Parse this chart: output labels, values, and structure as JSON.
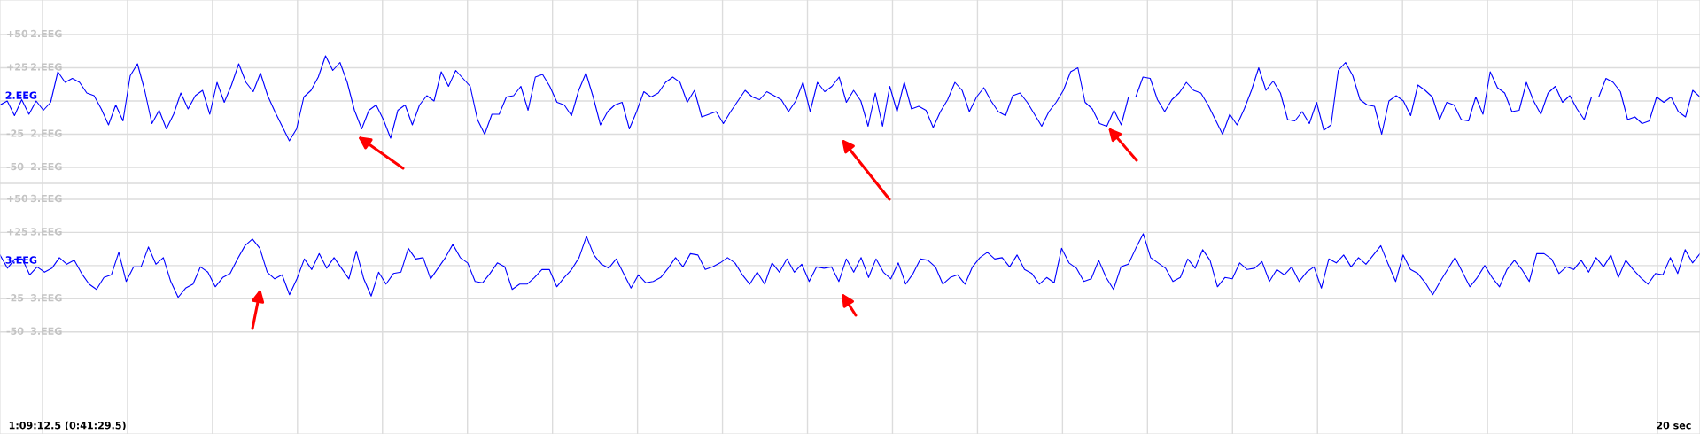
{
  "chart_data": [
    {
      "type": "line",
      "ylim": [
        -62,
        76
      ],
      "grid": true,
      "tick_labels": "y",
      "yticks": [
        {
          "value": 50,
          "label": "+50"
        },
        {
          "value": 25,
          "label": "+25"
        },
        {
          "value": 0,
          "label": null
        },
        {
          "value": -25,
          "label": "-25"
        },
        {
          "value": -50,
          "label": "-50"
        }
      ],
      "categories": [
        null,
        null,
        null,
        null,
        null,
        null,
        null,
        null,
        null,
        null,
        null,
        null,
        null,
        null,
        null,
        null,
        null,
        null,
        null,
        null,
        null,
        null,
        null,
        null,
        null,
        null,
        null,
        null,
        null,
        null,
        null,
        null,
        null,
        null,
        null,
        null,
        null,
        null,
        null,
        null,
        null,
        null,
        null,
        null,
        null,
        null,
        null,
        null,
        null,
        null,
        null,
        null,
        null,
        null,
        null,
        null,
        null,
        null,
        null,
        null,
        null,
        null,
        null,
        null,
        null,
        null,
        null,
        null,
        null,
        null,
        null,
        null,
        null,
        null,
        null,
        null,
        null,
        null,
        null,
        null,
        null,
        null,
        null,
        null,
        null,
        null,
        null,
        null,
        null,
        null,
        null,
        null,
        null,
        null,
        null,
        null,
        null,
        null,
        null,
        null,
        null,
        null,
        null,
        null,
        null,
        null,
        null,
        null,
        null,
        null,
        null,
        null,
        null,
        null,
        null,
        null,
        null,
        null,
        null,
        null,
        null,
        null,
        null,
        null,
        null,
        null,
        null,
        null,
        null,
        null,
        null,
        null,
        null,
        null,
        null,
        null,
        null,
        null,
        null,
        null,
        null,
        null,
        null,
        null,
        null,
        null,
        null,
        null,
        null,
        null,
        null,
        null,
        null,
        null,
        null,
        null,
        null,
        null,
        null,
        null,
        null,
        null,
        null,
        null,
        null,
        null,
        null,
        null,
        null,
        null,
        null,
        null,
        null,
        null,
        null,
        null,
        null,
        null,
        null,
        null,
        null,
        null,
        null,
        null,
        null,
        null,
        null,
        null,
        null,
        null,
        null,
        null,
        null,
        null,
        null,
        null,
        null,
        null,
        null,
        null,
        null,
        null,
        null,
        null,
        null,
        null,
        null,
        null,
        null,
        null,
        null,
        null,
        null,
        null,
        null,
        null,
        null,
        null,
        null,
        null,
        null,
        null,
        null,
        null,
        null,
        null,
        null,
        null,
        null,
        null,
        null,
        null,
        null,
        null,
        null,
        null
      ],
      "series": [
        {
          "name": "2.EEG",
          "color": "#0000ff",
          "values": [
            -3,
            0,
            -11,
            1,
            -10,
            0,
            -7,
            -1,
            22,
            14,
            17,
            14,
            6,
            4,
            -6,
            -18,
            -3,
            -15,
            19,
            28,
            8,
            -17,
            -7,
            -21,
            -10,
            6,
            -6,
            4,
            8,
            -10,
            14,
            -1,
            12,
            28,
            14,
            7,
            21,
            4,
            -8,
            -19,
            -30,
            -21,
            3,
            8,
            18,
            34,
            23,
            29,
            14,
            -7,
            -21,
            -7,
            -3,
            -14,
            -28,
            -7,
            -3,
            -18,
            -3,
            4,
            0,
            22,
            11,
            23,
            17,
            11,
            -14,
            -25,
            -10,
            -10,
            3,
            4,
            11,
            -7,
            18,
            20,
            11,
            -1,
            -3,
            -11,
            8,
            21,
            3,
            -18,
            -8,
            -3,
            -1,
            -21,
            -8,
            7,
            3,
            6,
            14,
            18,
            14,
            -1,
            8,
            -12,
            -10,
            -8,
            -17,
            -8,
            0,
            8,
            3,
            1,
            7,
            4,
            1,
            -8,
            0,
            14,
            -8,
            14,
            7,
            11,
            18,
            -1,
            8,
            0,
            -19,
            6,
            -19,
            11,
            -8,
            14,
            -6,
            -4,
            -7,
            -20,
            -8,
            1,
            14,
            8,
            -8,
            3,
            10,
            0,
            -8,
            -11,
            4,
            6,
            -1,
            -10,
            -19,
            -8,
            -1,
            8,
            22,
            25,
            -1,
            -6,
            -17,
            -19,
            -7,
            -18,
            3,
            3,
            18,
            17,
            1,
            -8,
            1,
            6,
            14,
            8,
            6,
            -3,
            -14,
            -25,
            -10,
            -18,
            -6,
            8,
            25,
            8,
            15,
            6,
            -14,
            -15,
            -8,
            -17,
            -1,
            -22,
            -18,
            23,
            29,
            19,
            1,
            -3,
            -4,
            -25,
            0,
            4,
            0,
            -11,
            12,
            8,
            3,
            -14,
            -1,
            -3,
            -14,
            -15,
            3,
            -10,
            22,
            10,
            6,
            -8,
            -7,
            14,
            0,
            -10,
            6,
            11,
            -1,
            4,
            -6,
            -14,
            3,
            3,
            17,
            14,
            7,
            -14,
            -12,
            -17,
            -15,
            3,
            -1,
            3,
            -8,
            -12,
            8,
            3
          ]
        }
      ]
    },
    {
      "type": "line",
      "ylim": [
        -127,
        62
      ],
      "grid": true,
      "tick_labels": "y",
      "yticks": [
        {
          "value": 50,
          "label": "+50"
        },
        {
          "value": 25,
          "label": "+25"
        },
        {
          "value": 0,
          "label": null
        },
        {
          "value": -25,
          "label": "-25"
        },
        {
          "value": -50,
          "label": "-50"
        }
      ],
      "categories": [
        null,
        null,
        null,
        null,
        null,
        null,
        null,
        null,
        null,
        null,
        null,
        null,
        null,
        null,
        null,
        null,
        null,
        null,
        null,
        null,
        null,
        null,
        null,
        null,
        null,
        null,
        null,
        null,
        null,
        null,
        null,
        null,
        null,
        null,
        null,
        null,
        null,
        null,
        null,
        null,
        null,
        null,
        null,
        null,
        null,
        null,
        null,
        null,
        null,
        null,
        null,
        null,
        null,
        null,
        null,
        null,
        null,
        null,
        null,
        null,
        null,
        null,
        null,
        null,
        null,
        null,
        null,
        null,
        null,
        null,
        null,
        null,
        null,
        null,
        null,
        null,
        null,
        null,
        null,
        null,
        null,
        null,
        null,
        null,
        null,
        null,
        null,
        null,
        null,
        null,
        null,
        null,
        null,
        null,
        null,
        null,
        null,
        null,
        null,
        null,
        null,
        null,
        null,
        null,
        null,
        null,
        null,
        null,
        null,
        null,
        null,
        null,
        null,
        null,
        null,
        null,
        null,
        null,
        null,
        null,
        null,
        null,
        null,
        null,
        null,
        null,
        null,
        null,
        null,
        null,
        null,
        null,
        null,
        null,
        null,
        null,
        null,
        null,
        null,
        null,
        null,
        null,
        null,
        null,
        null,
        null,
        null,
        null,
        null,
        null,
        null,
        null,
        null,
        null,
        null,
        null,
        null,
        null,
        null,
        null,
        null,
        null,
        null,
        null,
        null,
        null,
        null,
        null,
        null,
        null,
        null,
        null,
        null,
        null,
        null,
        null,
        null,
        null,
        null,
        null,
        null,
        null,
        null,
        null,
        null,
        null,
        null,
        null,
        null,
        null,
        null,
        null,
        null,
        null,
        null,
        null,
        null,
        null,
        null,
        null,
        null,
        null,
        null,
        null,
        null,
        null,
        null,
        null,
        null,
        null,
        null,
        null,
        null,
        null,
        null,
        null,
        null,
        null,
        null,
        null,
        null,
        null,
        null,
        null,
        null,
        null,
        null,
        null,
        null,
        null
      ],
      "annotations": [
        "1:09:12.5 (0:41:29.5)",
        "20 sec"
      ],
      "series": [
        {
          "name": "3.EEG",
          "color": "#0000ff",
          "values": [
            8,
            -2,
            5,
            5,
            -7,
            -1,
            -5,
            -2,
            6,
            1,
            4,
            -6,
            -14,
            -18,
            -9,
            -7,
            10,
            -12,
            -1,
            -1,
            14,
            1,
            6,
            -12,
            -24,
            -17,
            -14,
            -1,
            -5,
            -16,
            -9,
            -6,
            5,
            15,
            20,
            13,
            -5,
            -10,
            -7,
            -22,
            -10,
            5,
            -3,
            9,
            -2,
            6,
            -2,
            -10,
            11,
            -10,
            -23,
            -5,
            -14,
            -6,
            -5,
            13,
            5,
            6,
            -10,
            -2,
            6,
            16,
            6,
            2,
            -12,
            -13,
            -6,
            2,
            -1,
            -18,
            -14,
            -14,
            -9,
            -3,
            -3,
            -16,
            -9,
            -3,
            6,
            22,
            8,
            1,
            -2,
            5,
            -6,
            -17,
            -7,
            -13,
            -12,
            -9,
            -2,
            6,
            -1,
            9,
            8,
            -3,
            -1,
            2,
            6,
            2,
            -7,
            -14,
            -5,
            -14,
            2,
            -5,
            5,
            -5,
            1,
            -12,
            -1,
            -2,
            -1,
            -12,
            5,
            -5,
            6,
            -9,
            5,
            -5,
            -10,
            2,
            -14,
            -6,
            5,
            4,
            -1,
            -14,
            -9,
            -7,
            -14,
            -1,
            6,
            10,
            5,
            6,
            -1,
            8,
            -3,
            -6,
            -14,
            -9,
            -13,
            13,
            2,
            -2,
            -12,
            -10,
            4,
            -9,
            -18,
            -1,
            1,
            13,
            24,
            6,
            2,
            -2,
            -12,
            -9,
            5,
            -2,
            12,
            4,
            -16,
            -9,
            -10,
            2,
            -3,
            -2,
            3,
            -12,
            -3,
            -7,
            -1,
            -12,
            -5,
            -1,
            -17,
            5,
            2,
            8,
            -1,
            6,
            1,
            8,
            15,
            1,
            -12,
            8,
            -3,
            -6,
            -13,
            -22,
            -12,
            -3,
            6,
            -5,
            -16,
            -9,
            0,
            -9,
            -16,
            -3,
            4,
            -3,
            -12,
            9,
            9,
            5,
            -6,
            -1,
            -3,
            4,
            -5,
            6,
            -1,
            8,
            -9,
            4,
            -3,
            -9,
            -14,
            -6,
            -7,
            6,
            -6,
            12,
            2,
            9
          ]
        }
      ]
    }
  ]
}
